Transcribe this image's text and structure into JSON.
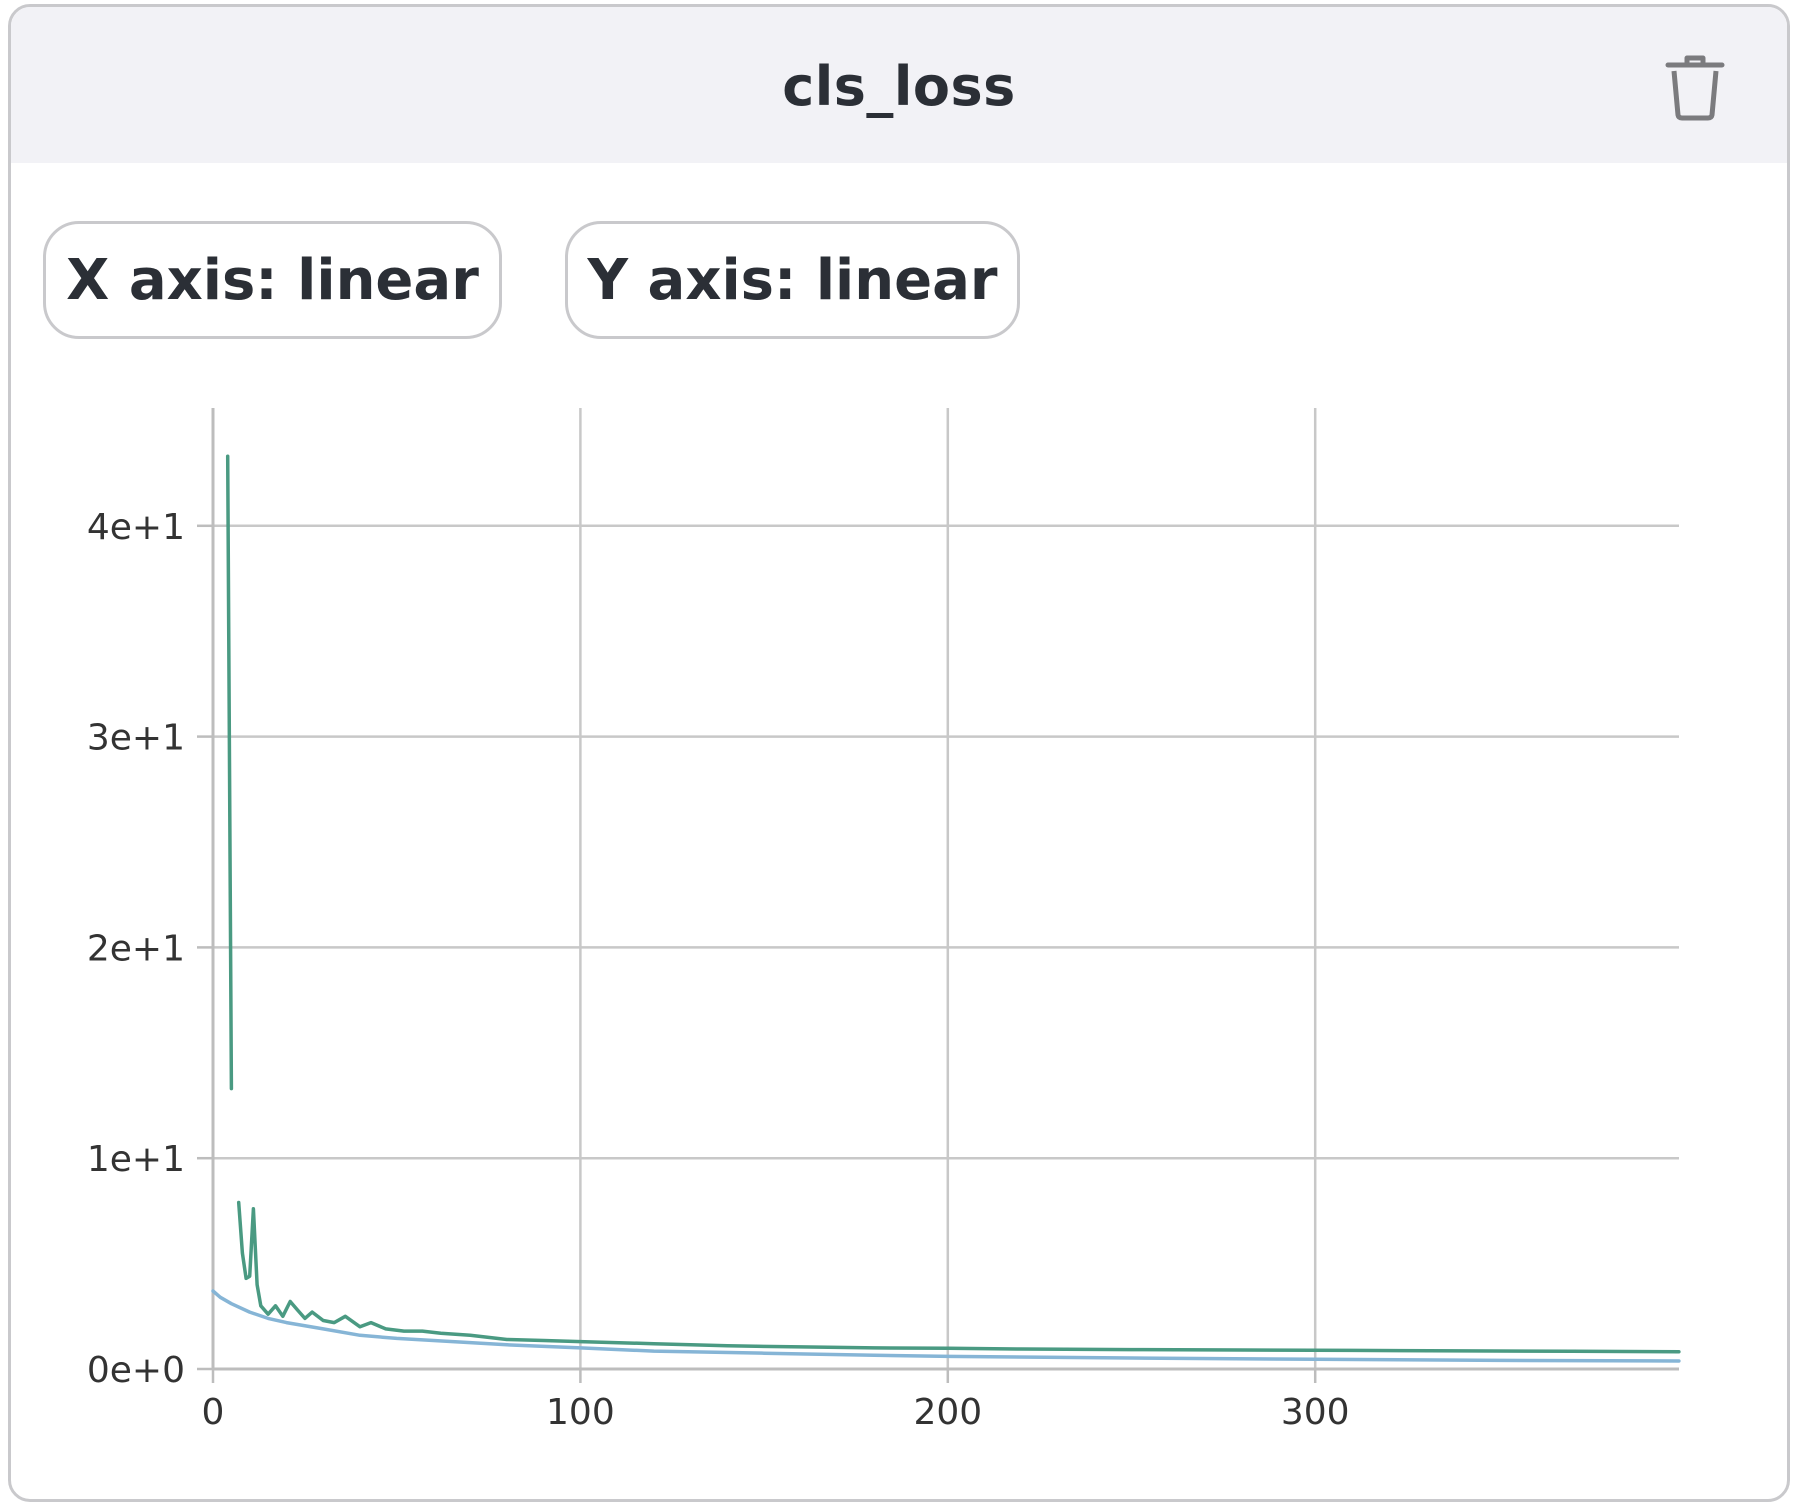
{
  "header": {
    "title": "cls_loss"
  },
  "controls": {
    "x_axis_label": "X axis: linear",
    "y_axis_label": "Y axis: linear"
  },
  "icons": {
    "delete": "trash-icon"
  },
  "colors": {
    "series_green": "#4a9a82",
    "series_blue": "#86b5d6",
    "grid": "#c8c8c8",
    "axis": "#bdbdbd"
  },
  "chart_data": {
    "type": "line",
    "xlim": [
      0,
      399
    ],
    "ylim": [
      0,
      45
    ],
    "x_scale": "linear",
    "y_scale": "linear",
    "grid": true,
    "x_ticks": [
      {
        "value": 0,
        "label": "0"
      },
      {
        "value": 100,
        "label": "100"
      },
      {
        "value": 200,
        "label": "200"
      },
      {
        "value": 300,
        "label": "300"
      }
    ],
    "y_ticks": [
      {
        "value": 0,
        "label": "0e+0"
      },
      {
        "value": 10,
        "label": "1e+1"
      },
      {
        "value": 20,
        "label": "2e+1"
      },
      {
        "value": 30,
        "label": "3e+1"
      },
      {
        "value": 40,
        "label": "4e+1"
      }
    ],
    "series": [
      {
        "color": "#4a9a82",
        "segments": [
          [
            [
              4,
              43.3
            ],
            [
              5,
              13.3
            ]
          ],
          [
            [
              7,
              7.9
            ],
            [
              8,
              5.5
            ],
            [
              9,
              4.3
            ],
            [
              10,
              4.4
            ],
            [
              11,
              7.6
            ],
            [
              12,
              4.0
            ],
            [
              13,
              3.0
            ],
            [
              15,
              2.6
            ],
            [
              17,
              3.0
            ],
            [
              19,
              2.5
            ],
            [
              21,
              3.2
            ],
            [
              23,
              2.8
            ],
            [
              25,
              2.4
            ],
            [
              27,
              2.7
            ],
            [
              30,
              2.3
            ],
            [
              33,
              2.2
            ],
            [
              36,
              2.5
            ],
            [
              40,
              2.0
            ],
            [
              43,
              2.2
            ],
            [
              47,
              1.9
            ],
            [
              52,
              1.8
            ],
            [
              57,
              1.8
            ],
            [
              62,
              1.7
            ],
            [
              70,
              1.6
            ],
            [
              80,
              1.4
            ],
            [
              90,
              1.35
            ],
            [
              100,
              1.3
            ],
            [
              120,
              1.2
            ],
            [
              140,
              1.1
            ],
            [
              160,
              1.05
            ],
            [
              180,
              1.0
            ],
            [
              200,
              0.98
            ],
            [
              220,
              0.95
            ],
            [
              250,
              0.92
            ],
            [
              280,
              0.9
            ],
            [
              310,
              0.88
            ],
            [
              340,
              0.86
            ],
            [
              370,
              0.84
            ],
            [
              399,
              0.82
            ]
          ]
        ]
      },
      {
        "color": "#86b5d6",
        "segments": [
          [
            [
              0,
              3.7
            ],
            [
              2,
              3.4
            ],
            [
              5,
              3.1
            ],
            [
              10,
              2.7
            ],
            [
              15,
              2.4
            ],
            [
              20,
              2.2
            ],
            [
              30,
              1.9
            ],
            [
              40,
              1.6
            ],
            [
              50,
              1.45
            ],
            [
              60,
              1.35
            ],
            [
              80,
              1.15
            ],
            [
              100,
              1.0
            ],
            [
              120,
              0.85
            ],
            [
              150,
              0.75
            ],
            [
              180,
              0.65
            ],
            [
              200,
              0.6
            ],
            [
              250,
              0.52
            ],
            [
              300,
              0.46
            ],
            [
              350,
              0.41
            ],
            [
              399,
              0.38
            ]
          ]
        ]
      }
    ]
  }
}
